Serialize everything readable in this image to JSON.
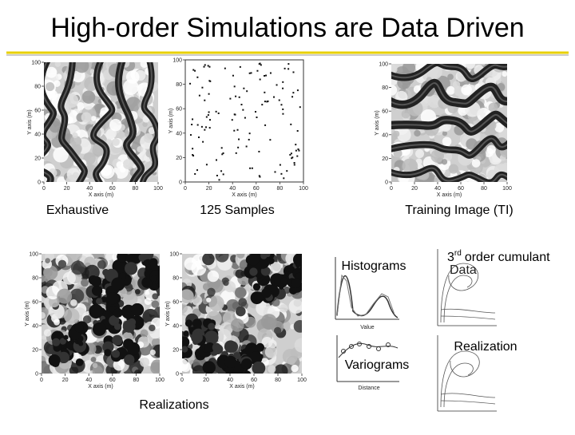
{
  "title": "High-order Simulations are Data Driven",
  "maps": [
    {
      "caption": "Exhaustive",
      "x_label": "X axis (m)",
      "y_label": "Y axis (m)",
      "x_ticks": [
        0,
        20,
        40,
        60,
        80,
        100
      ],
      "y_ticks": [
        0,
        20,
        40,
        60,
        80,
        100
      ]
    },
    {
      "caption": "125 Samples",
      "x_label": "X axis (m)",
      "y_label": "Y axis (m)",
      "x_ticks": [
        0,
        20,
        40,
        60,
        80,
        100
      ],
      "y_ticks": [
        0,
        20,
        40,
        60,
        80,
        100
      ]
    },
    {
      "caption": "Training Image (TI)",
      "x_label": "X axis (m)",
      "y_label": "Y axis (m)",
      "x_ticks": [
        0,
        20,
        40,
        60,
        80,
        100
      ],
      "y_ticks": [
        0,
        20,
        40,
        60,
        80,
        100
      ]
    },
    {
      "x_label": "X axis (m)",
      "y_label": "Y axis (m)",
      "x_ticks": [
        0,
        20,
        40,
        60,
        80,
        100
      ],
      "y_ticks": [
        0,
        20,
        40,
        60,
        80,
        100
      ]
    },
    {
      "x_label": "X axis (m)",
      "y_label": "Y axis (m)",
      "x_ticks": [
        0,
        20,
        40,
        60,
        80,
        100
      ],
      "y_ticks": [
        0,
        20,
        40,
        60,
        80,
        100
      ]
    }
  ],
  "realizations_caption": "Realizations",
  "statistics": {
    "histograms": "Histograms",
    "histogram_x_label": "Value",
    "variograms": "Variograms",
    "variogram_x_label": "Distance",
    "cumulant": {
      "number": "3",
      "suffix": "rd",
      "text": "order cumulant",
      "line2": "Data"
    },
    "realization": "Realization"
  }
}
